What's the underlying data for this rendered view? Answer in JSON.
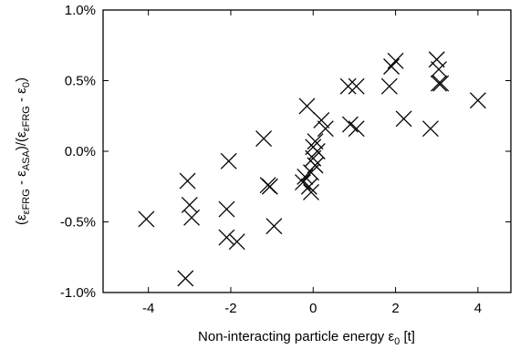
{
  "chart_data": {
    "type": "scatter",
    "marker": "x",
    "xlabel": "Non-interacting particle energy ε₀ [t]",
    "ylabel": "(εεFRG - εASA)/(εεFRG - ε₀)",
    "xlabel_parts": {
      "main": "Non-interacting particle energy ε",
      "sub": "0",
      "tail": " [t]"
    },
    "ylabel_parts": [
      {
        "t": "(ε",
        "sub": false
      },
      {
        "t": "εFRG",
        "sub": true
      },
      {
        "t": " - ε",
        "sub": false
      },
      {
        "t": "ASA",
        "sub": true
      },
      {
        "t": ")/(ε",
        "sub": false
      },
      {
        "t": "εFRG",
        "sub": true
      },
      {
        "t": " - ε",
        "sub": false
      },
      {
        "t": "0",
        "sub": true
      },
      {
        "t": ")",
        "sub": false
      }
    ],
    "xlim": [
      -5.1,
      4.8
    ],
    "ylim": [
      -1.0,
      1.0
    ],
    "xticks": [
      -4,
      -2,
      0,
      2,
      4
    ],
    "xtick_labels": [
      "-4",
      "-2",
      "0",
      "2",
      "4"
    ],
    "yticks": [
      -1.0,
      -0.5,
      0.0,
      0.5,
      1.0
    ],
    "ytick_labels": [
      "-1.0%",
      "-0.5%",
      "0.0%",
      "0.5%",
      "1.0%"
    ],
    "grid": false,
    "legend": "none",
    "series": [
      {
        "color": "#000000",
        "points": [
          {
            "x": -4.05,
            "y": -0.48
          },
          {
            "x": -3.1,
            "y": -0.9
          },
          {
            "x": -3.05,
            "y": -0.21
          },
          {
            "x": -3.0,
            "y": -0.38
          },
          {
            "x": -2.95,
            "y": -0.47
          },
          {
            "x": -2.1,
            "y": -0.41
          },
          {
            "x": -2.1,
            "y": -0.61
          },
          {
            "x": -2.05,
            "y": -0.07
          },
          {
            "x": -1.85,
            "y": -0.64
          },
          {
            "x": -1.2,
            "y": 0.09
          },
          {
            "x": -1.1,
            "y": -0.24
          },
          {
            "x": -1.05,
            "y": -0.25
          },
          {
            "x": -0.95,
            "y": -0.53
          },
          {
            "x": -0.25,
            "y": -0.22
          },
          {
            "x": -0.2,
            "y": -0.18
          },
          {
            "x": -0.15,
            "y": 0.32
          },
          {
            "x": -0.1,
            "y": -0.25
          },
          {
            "x": -0.05,
            "y": -0.29
          },
          {
            "x": -0.05,
            "y": -0.15
          },
          {
            "x": 0.0,
            "y": 0.03
          },
          {
            "x": 0.0,
            "y": -0.05
          },
          {
            "x": 0.05,
            "y": -0.1
          },
          {
            "x": 0.05,
            "y": 0.07
          },
          {
            "x": 0.1,
            "y": 0.0
          },
          {
            "x": 0.2,
            "y": 0.22
          },
          {
            "x": 0.3,
            "y": 0.16
          },
          {
            "x": 0.85,
            "y": 0.46
          },
          {
            "x": 0.9,
            "y": 0.19
          },
          {
            "x": 1.05,
            "y": 0.46
          },
          {
            "x": 1.05,
            "y": 0.16
          },
          {
            "x": 1.85,
            "y": 0.46
          },
          {
            "x": 1.9,
            "y": 0.6
          },
          {
            "x": 2.0,
            "y": 0.64
          },
          {
            "x": 2.2,
            "y": 0.23
          },
          {
            "x": 2.85,
            "y": 0.16
          },
          {
            "x": 3.0,
            "y": 0.65
          },
          {
            "x": 3.05,
            "y": 0.58
          },
          {
            "x": 3.1,
            "y": 0.48
          },
          {
            "x": 3.05,
            "y": 0.48
          },
          {
            "x": 4.0,
            "y": 0.36
          }
        ]
      }
    ]
  }
}
